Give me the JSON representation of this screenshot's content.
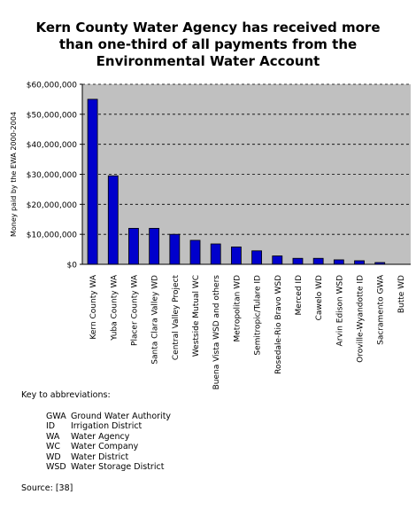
{
  "title_lines": [
    "Kern County Water Agency has received more",
    "than one-third of all payments from the",
    "Environmental Water Account"
  ],
  "chart_data": {
    "type": "bar",
    "title": "Kern County Water Agency has received more than one-third of all payments from the Environmental Water Account",
    "xlabel": "",
    "ylabel": "Money paid by the EWA 2000-2004",
    "ylim": [
      0,
      60000000
    ],
    "yticks": [
      0,
      10000000,
      20000000,
      30000000,
      40000000,
      50000000,
      60000000
    ],
    "ytick_labels": [
      "$0",
      "$10,000,000",
      "$20,000,000",
      "$30,000,000",
      "$40,000,000",
      "$50,000,000",
      "$60,000,000"
    ],
    "grid": "horizontal dashed",
    "legend": "none",
    "categories": [
      "Kern County WA",
      "Yuba County WA",
      "Placer County WA",
      "Santa Clara Valley WD",
      "Central Valley Project",
      "Westside Mutual WC",
      "Buena Vista WSD and others",
      "Metropolitan WD",
      "Semitropic/Tulare ID",
      "Rosedale-Rio Bravo WSD",
      "Merced ID",
      "Cawelo WD",
      "Arvin Edison WSD",
      "Oroville-Wyandotte ID",
      "Sacramento GWA",
      "Butte WD"
    ],
    "values": [
      55000000,
      29500000,
      12000000,
      12000000,
      10000000,
      8000000,
      6800000,
      5800000,
      4500000,
      2800000,
      2000000,
      2000000,
      1500000,
      1200000,
      600000,
      0
    ],
    "colors": {
      "bar": "#0000cc",
      "plot_background": "#c0c0c0"
    }
  },
  "key": {
    "heading": "Key to abbreviations:",
    "items": [
      {
        "abbr": "GWA",
        "meaning": "Ground Water Authority"
      },
      {
        "abbr": "ID",
        "meaning": "Irrigation District"
      },
      {
        "abbr": "WA",
        "meaning": "Water Agency"
      },
      {
        "abbr": "WC",
        "meaning": "Water Company"
      },
      {
        "abbr": "WD",
        "meaning": "Water District"
      },
      {
        "abbr": "WSD",
        "meaning": "Water Storage District"
      }
    ]
  },
  "source": "Source: [38]"
}
